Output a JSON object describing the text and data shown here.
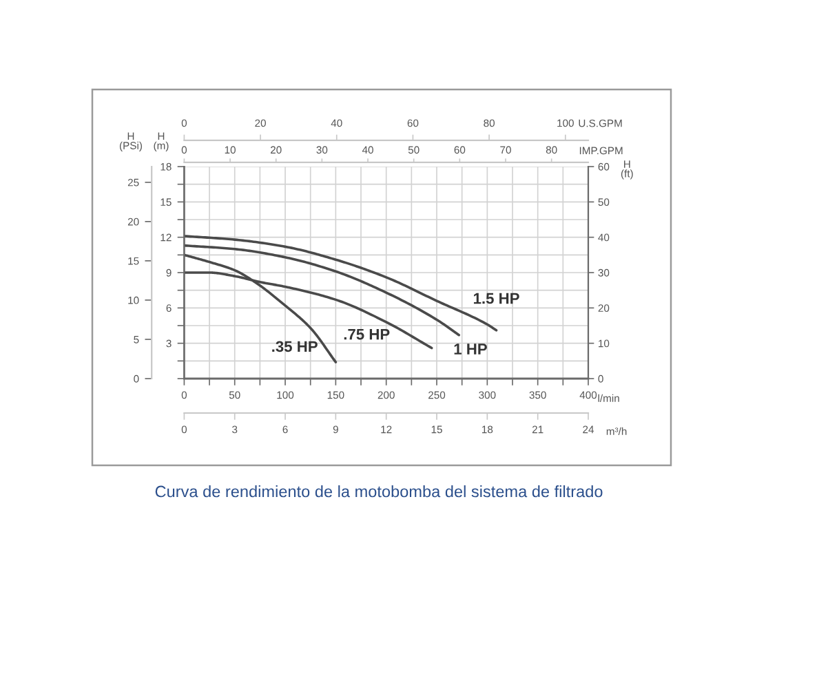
{
  "chart_data": [
    {
      "type": "line",
      "annotations": [
        "Curva de rendimiento de la motobomba del sistema de filtrado"
      ],
      "xlabel": "l/min",
      "x2label": "IMP.GPM",
      "ylabel": "H\n(m)",
      "y2label": "H\n(ft)",
      "y3label": "H\n(PSi)",
      "xlim": [
        0,
        400
      ],
      "xticks": [
        0,
        {
          "value": 25,
          "label": null
        },
        50,
        {
          "value": 75,
          "label": null
        },
        100,
        {
          "value": 125,
          "label": null
        },
        150,
        {
          "value": 175,
          "label": null
        },
        200,
        {
          "value": 225,
          "label": null
        },
        250,
        {
          "value": 275,
          "label": null
        },
        300,
        {
          "value": 325,
          "label": null
        },
        350,
        {
          "value": 375,
          "label": null
        },
        400
      ],
      "x2lim": [
        0,
        88
      ],
      "x2ticks": [
        0,
        10,
        20,
        30,
        40,
        50,
        60,
        70,
        80
      ],
      "ylim": [
        0,
        18
      ],
      "yticks": [
        {
          "value": 0,
          "label": null
        },
        {
          "value": 1.5,
          "label": null
        },
        3,
        {
          "value": 4.5,
          "label": null
        },
        6,
        {
          "value": 7.5,
          "label": null
        },
        9,
        {
          "value": 10.5,
          "label": null
        },
        12,
        {
          "value": 13.5,
          "label": null
        },
        15,
        {
          "value": 16.5,
          "label": null
        },
        18
      ],
      "y2lim": [
        0,
        60
      ],
      "y2ticks": [
        0,
        10,
        20,
        30,
        40,
        50,
        60
      ],
      "y3lim": [
        0,
        27
      ],
      "y3ticks": [
        0,
        5,
        10,
        15,
        20,
        25
      ],
      "grid": true,
      "series": [
        {
          "name": ".35 HP",
          "color": "#4a4a4a",
          "x": [
            0,
            25,
            50,
            70,
            100,
            125,
            150
          ],
          "values": [
            10.5,
            9.9,
            9.2,
            8.2,
            6.2,
            4.3,
            1.4
          ]
        },
        {
          "name": ".75 HP",
          "color": "#4a4a4a",
          "x": [
            0,
            25,
            50,
            75,
            100,
            150,
            200,
            245
          ],
          "values": [
            9.0,
            9.0,
            8.7,
            8.2,
            7.8,
            6.7,
            4.8,
            2.6
          ]
        },
        {
          "name": "1 HP",
          "color": "#4a4a4a",
          "x": [
            0,
            50,
            100,
            150,
            200,
            250,
            272
          ],
          "values": [
            11.3,
            11.0,
            10.3,
            9.1,
            7.3,
            5.0,
            3.7
          ]
        },
        {
          "name": "1.5 HP",
          "color": "#4a4a4a",
          "x": [
            0,
            50,
            100,
            150,
            200,
            250,
            300,
            309
          ],
          "values": [
            12.1,
            11.8,
            11.2,
            10.1,
            8.6,
            6.6,
            4.6,
            4.1
          ]
        }
      ]
    },
    {
      "type": "line",
      "xlabel": "m³/h",
      "x2label": "U.S.GPM",
      "xlim": [
        0,
        24
      ],
      "xticks": [
        0,
        3,
        6,
        9,
        12,
        15,
        18,
        21,
        24
      ],
      "x2lim": [
        0,
        106
      ],
      "x2ticks": [
        0,
        20,
        40,
        60,
        80,
        100
      ],
      "ylim": [
        0,
        18
      ],
      "tick_labels": "x"
    }
  ]
}
